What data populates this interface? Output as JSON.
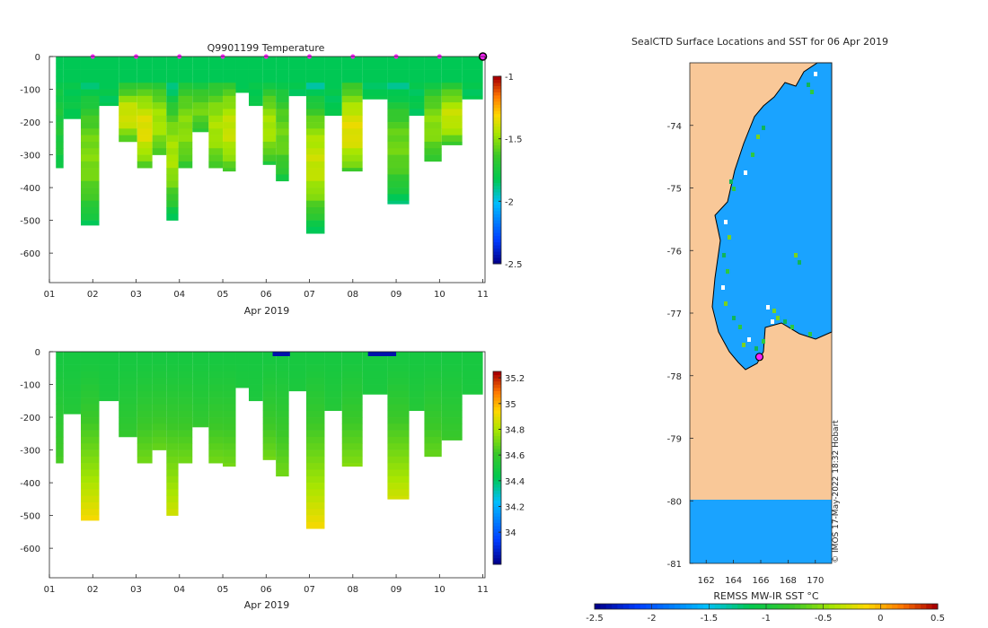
{
  "colors": {
    "land": "#f9c898",
    "ice": "#1aa3ff",
    "axis": "#262626",
    "marker": "#ff22ff"
  },
  "chart_data": [
    {
      "id": "temperature",
      "type": "heatmap",
      "title": "Q9901199  Temperature",
      "xlabel": "Apr 2019",
      "x_ticks": [
        "01",
        "02",
        "03",
        "04",
        "05",
        "06",
        "07",
        "08",
        "09",
        "10",
        "11"
      ],
      "xlim": [
        1,
        11.05
      ],
      "y_ticks": [
        "0",
        "-100",
        "-200",
        "-300",
        "-400",
        "-500",
        "-600"
      ],
      "ylim": [
        -690,
        0
      ],
      "colorbar": {
        "min": -2.5,
        "max": -1,
        "ticks": [
          "-1",
          "-1.5",
          "-2",
          "-2.5"
        ]
      },
      "surface_markers_day": [
        2,
        3,
        4,
        5,
        6,
        7,
        8,
        9,
        10
      ],
      "profiles": [
        {
          "day": 1.15,
          "depth": 340,
          "hi": -1.72,
          "lo": -1.8
        },
        {
          "day": 1.5,
          "depth": 190,
          "hi": -1.8,
          "lo": -1.82
        },
        {
          "day": 1.95,
          "depth": 515,
          "hi": -1.52,
          "lo": -1.85
        },
        {
          "day": 2.35,
          "depth": 150,
          "hi": -1.82,
          "lo": -1.83
        },
        {
          "day": 2.85,
          "depth": 260,
          "hi": -1.38,
          "lo": -1.7
        },
        {
          "day": 3.2,
          "depth": 340,
          "hi": -1.35,
          "lo": -1.65
        },
        {
          "day": 3.55,
          "depth": 300,
          "hi": -1.45,
          "lo": -1.7
        },
        {
          "day": 3.85,
          "depth": 500,
          "hi": -1.45,
          "lo": -1.9
        },
        {
          "day": 4.1,
          "depth": 340,
          "hi": -1.5,
          "lo": -1.7
        },
        {
          "day": 4.5,
          "depth": 230,
          "hi": -1.55,
          "lo": -1.75
        },
        {
          "day": 4.85,
          "depth": 340,
          "hi": -1.45,
          "lo": -1.7
        },
        {
          "day": 5.15,
          "depth": 350,
          "hi": -1.4,
          "lo": -1.65
        },
        {
          "day": 5.45,
          "depth": 110,
          "hi": -1.82,
          "lo": -1.83
        },
        {
          "day": 5.75,
          "depth": 150,
          "hi": -1.8,
          "lo": -1.82
        },
        {
          "day": 6.1,
          "depth": 330,
          "hi": -1.45,
          "lo": -1.75
        },
        {
          "day": 6.35,
          "depth": 380,
          "hi": -1.55,
          "lo": -1.8
        },
        {
          "day": 6.7,
          "depth": 120,
          "hi": -1.82,
          "lo": -1.83
        },
        {
          "day": 7.15,
          "depth": 540,
          "hi": -1.4,
          "lo": -1.9
        },
        {
          "day": 7.55,
          "depth": 180,
          "hi": -1.82,
          "lo": -1.83
        },
        {
          "day": 7.95,
          "depth": 350,
          "hi": -1.35,
          "lo": -1.65
        },
        {
          "day": 8.5,
          "depth": 130,
          "hi": -1.82,
          "lo": -1.83
        },
        {
          "day": 9.1,
          "depth": 450,
          "hi": -1.55,
          "lo": -1.9
        },
        {
          "day": 9.5,
          "depth": 180,
          "hi": -1.82,
          "lo": -1.83
        },
        {
          "day": 9.8,
          "depth": 320,
          "hi": -1.5,
          "lo": -1.75
        },
        {
          "day": 10.3,
          "depth": 270,
          "hi": -1.4,
          "lo": -1.7
        },
        {
          "day": 10.75,
          "depth": 130,
          "hi": -1.82,
          "lo": -1.83
        }
      ]
    },
    {
      "id": "salinity",
      "type": "heatmap",
      "title": "",
      "xlabel": "Apr 2019",
      "x_ticks": [
        "01",
        "02",
        "03",
        "04",
        "05",
        "06",
        "07",
        "08",
        "09",
        "10",
        "11"
      ],
      "xlim": [
        1,
        11.05
      ],
      "y_ticks": [
        "0",
        "-100",
        "-200",
        "-300",
        "-400",
        "-500",
        "-600"
      ],
      "ylim": [
        -690,
        0
      ],
      "colorbar": {
        "min": 33.75,
        "max": 35.25,
        "ticks": [
          "35.2",
          "35",
          "34.8",
          "34.6",
          "34.4",
          "34.2",
          "34"
        ]
      },
      "profiles": [
        {
          "day": 1.15,
          "depth": 340,
          "top": 34.5,
          "bottom": 34.65
        },
        {
          "day": 1.5,
          "depth": 190,
          "top": 34.5,
          "bottom": 34.55
        },
        {
          "day": 1.95,
          "depth": 515,
          "top": 34.5,
          "bottom": 34.95
        },
        {
          "day": 2.35,
          "depth": 150,
          "top": 34.5,
          "bottom": 34.52
        },
        {
          "day": 2.85,
          "depth": 260,
          "top": 34.5,
          "bottom": 34.6
        },
        {
          "day": 3.2,
          "depth": 340,
          "top": 34.5,
          "bottom": 34.72
        },
        {
          "day": 3.55,
          "depth": 300,
          "top": 34.5,
          "bottom": 34.7
        },
        {
          "day": 3.85,
          "depth": 500,
          "top": 34.5,
          "bottom": 34.88
        },
        {
          "day": 4.1,
          "depth": 340,
          "top": 34.5,
          "bottom": 34.72
        },
        {
          "day": 4.5,
          "depth": 230,
          "top": 34.5,
          "bottom": 34.6
        },
        {
          "day": 4.85,
          "depth": 340,
          "top": 34.5,
          "bottom": 34.72
        },
        {
          "day": 5.15,
          "depth": 350,
          "top": 34.5,
          "bottom": 34.72
        },
        {
          "day": 5.45,
          "depth": 110,
          "top": 34.5,
          "bottom": 34.52
        },
        {
          "day": 5.75,
          "depth": 150,
          "top": 34.5,
          "bottom": 34.52
        },
        {
          "day": 6.1,
          "depth": 330,
          "top": 34.5,
          "bottom": 34.72
        },
        {
          "day": 6.35,
          "depth": 380,
          "top": 34.5,
          "bottom": 34.72
        },
        {
          "day": 6.7,
          "depth": 120,
          "top": 34.5,
          "bottom": 34.52
        },
        {
          "day": 7.15,
          "depth": 540,
          "top": 34.5,
          "bottom": 34.95
        },
        {
          "day": 7.55,
          "depth": 180,
          "top": 34.5,
          "bottom": 34.55
        },
        {
          "day": 7.95,
          "depth": 350,
          "top": 34.5,
          "bottom": 34.75
        },
        {
          "day": 8.5,
          "depth": 130,
          "top": 34.5,
          "bottom": 34.52
        },
        {
          "day": 9.1,
          "depth": 450,
          "top": 34.5,
          "bottom": 34.88
        },
        {
          "day": 9.5,
          "depth": 180,
          "top": 34.5,
          "bottom": 34.55
        },
        {
          "day": 9.8,
          "depth": 320,
          "top": 34.5,
          "bottom": 34.7
        },
        {
          "day": 10.3,
          "depth": 270,
          "top": 34.5,
          "bottom": 34.62
        },
        {
          "day": 10.75,
          "depth": 130,
          "top": 34.5,
          "bottom": 34.52
        }
      ],
      "surface_fresh": [
        {
          "from": 6.15,
          "to": 6.55,
          "value": 33.8
        },
        {
          "from": 8.35,
          "to": 9.0,
          "value": 33.8
        }
      ]
    },
    {
      "id": "map",
      "type": "heatmap",
      "title": "SealCTD Surface Locations and SST for 06 Apr 2019",
      "lon_ticks": [
        "162",
        "164",
        "166",
        "168",
        "170"
      ],
      "lon_range": [
        160.8,
        171.2
      ],
      "lat_ticks": [
        "-74",
        "-75",
        "-76",
        "-77",
        "-78",
        "-79",
        "-80",
        "-81"
      ],
      "lat_range": [
        -81.0,
        -73.0
      ],
      "colorbar_label": "REMSS MW-IR SST °C",
      "colorbar": {
        "min": -2.5,
        "max": 0.5,
        "ticks": [
          "-2.5",
          "-2",
          "-1.5",
          "-1",
          "-0.5",
          "0",
          "0.5"
        ]
      },
      "credit": "© IMOS 17-May-2022 18:32 Hobart",
      "seal_location": {
        "lon": 165.9,
        "lat": -77.7
      }
    }
  ]
}
